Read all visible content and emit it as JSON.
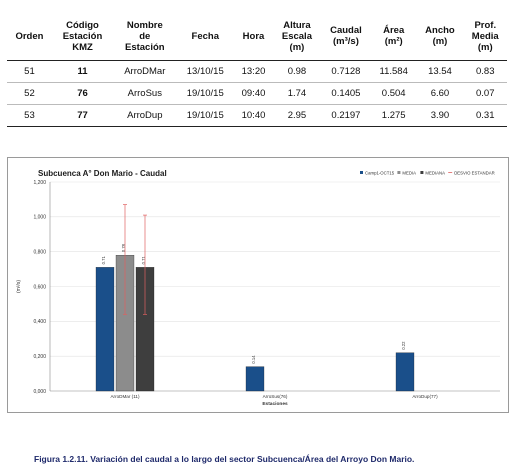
{
  "table": {
    "headers": [
      "Orden",
      "Código\nEstación\nKMZ",
      "Nombre\nde\nEstación",
      "Fecha",
      "Hora",
      "Altura\nEscala\n(m)",
      "Caudal\n(m³/s)",
      "Área\n(m²)",
      "Ancho\n(m)",
      "Prof.\nMedia\n(m)"
    ],
    "rows": [
      [
        "51",
        "11",
        "ArroDMar",
        "13/10/15",
        "13:20",
        "0.98",
        "0.7128",
        "11.584",
        "13.54",
        "0.83"
      ],
      [
        "52",
        "76",
        "ArroSus",
        "19/10/15",
        "09:40",
        "1.74",
        "0.1405",
        "0.504",
        "6.60",
        "0.07"
      ],
      [
        "53",
        "77",
        "ArroDup",
        "19/10/15",
        "10:40",
        "2.95",
        "0.2197",
        "1.275",
        "3.90",
        "0.31"
      ]
    ]
  },
  "chart_data": {
    "type": "bar",
    "title": "Subcuenca A° Don Mario - Caudal",
    "xlabel": "Estaciones",
    "ylabel": "(m³/s)",
    "ylim": [
      0,
      1.2
    ],
    "yticks": [
      "0,000",
      "0,200",
      "0,400",
      "0,600",
      "0,800",
      "1,000",
      "1,200"
    ],
    "grid": true,
    "legend_position": "top-right",
    "categories": [
      "ArroDMar (11)",
      "ArroSus(76)",
      "ArroDup(77)"
    ],
    "series": [
      {
        "name": "Camp1-OCT15",
        "color": "#1a4f8a",
        "values": [
          0.71,
          0.14,
          0.22
        ],
        "value_labels": [
          "0.71",
          "0.14",
          "0.22"
        ]
      },
      {
        "name": "MEDIA",
        "color": "#8c8c8c",
        "values": [
          0.78,
          null,
          null
        ],
        "value_labels": [
          "0.78",
          "",
          ""
        ]
      },
      {
        "name": "MEDIANA",
        "color": "#3e3e3e",
        "values": [
          0.71,
          null,
          null
        ],
        "value_labels": [
          "0.71",
          "",
          ""
        ]
      }
    ],
    "error_bars": {
      "name": "DESVIO ESTANDAR",
      "color": "#e06060",
      "items": [
        {
          "category_index": 0,
          "series_index": 1,
          "low": 0.44,
          "high": 1.07
        },
        {
          "category_index": 0,
          "series_index": 2,
          "low": 0.44,
          "high": 1.01
        }
      ]
    }
  },
  "caption": "Figura 1.2.11. Variación del caudal a lo largo del sector Subcuenca/Área del Arroyo Don Mario."
}
